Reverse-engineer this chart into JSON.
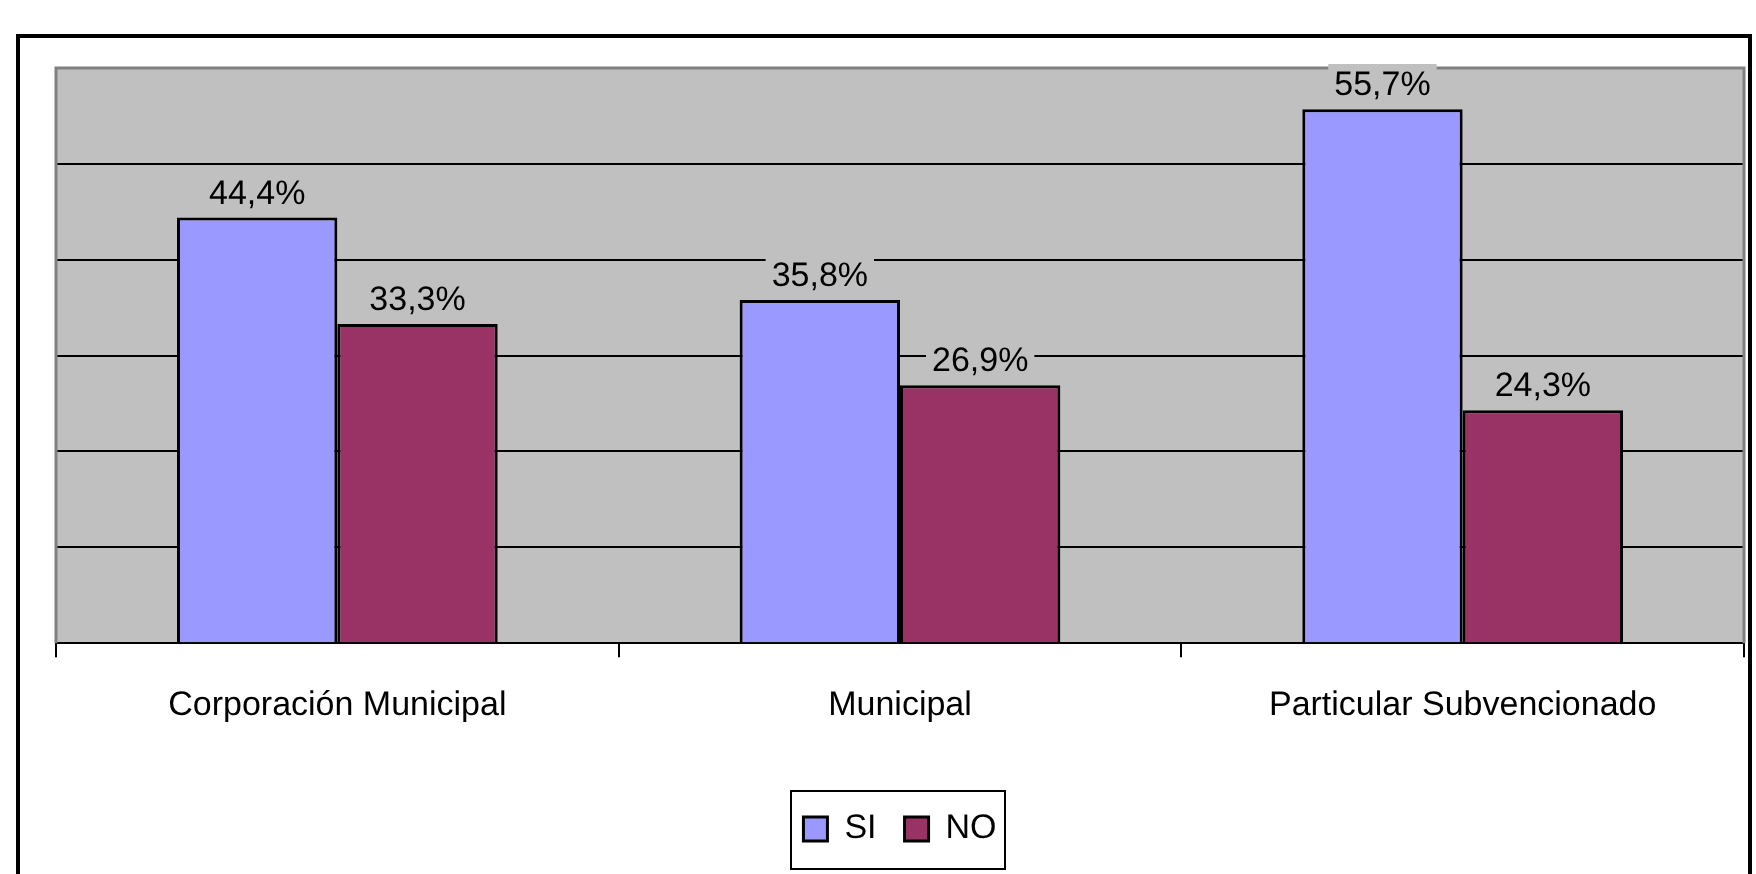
{
  "chart_data": {
    "type": "bar",
    "categories": [
      "Corporación Municipal",
      "Municipal",
      "Particular Subvencionado"
    ],
    "series": [
      {
        "name": "SI",
        "color": "#9999ff",
        "values": [
          44.4,
          35.8,
          55.7
        ],
        "value_labels": [
          "44,4%",
          "35,8%",
          "55,7%"
        ]
      },
      {
        "name": "NO",
        "color": "#993366",
        "values": [
          33.3,
          26.9,
          24.3
        ],
        "value_labels": [
          "33,3%",
          "26,9%",
          "24,3%"
        ]
      }
    ],
    "ylim": [
      0,
      60
    ],
    "grid": "y",
    "legend": "bottom",
    "tick_labels": "x"
  }
}
